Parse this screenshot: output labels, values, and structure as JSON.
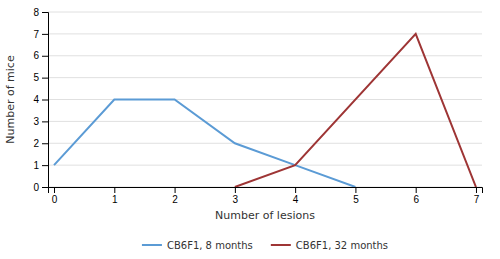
{
  "chart_data": {
    "type": "line",
    "xlabel": "Number of lesions",
    "ylabel": "Number of mice",
    "series": [
      {
        "name": "CB6F1, 8 months",
        "color": "#5B9BD5",
        "x": [
          0,
          1,
          2,
          3,
          4,
          5
        ],
        "values": [
          1,
          4,
          4,
          2,
          1,
          0
        ]
      },
      {
        "name": "CB6F1, 32 months",
        "color": "#9E3535",
        "x": [
          3,
          4,
          6,
          7
        ],
        "values": [
          0,
          1,
          7,
          0
        ]
      }
    ],
    "xlim": [
      -0.1,
      7.1
    ],
    "ylim": [
      0,
      8
    ],
    "xticks": [
      0,
      1,
      2,
      3,
      4,
      5,
      6,
      7
    ],
    "yticks": [
      0,
      1,
      2,
      3,
      4,
      5,
      6,
      7,
      8
    ],
    "grid": "y",
    "legend": "bottom"
  }
}
